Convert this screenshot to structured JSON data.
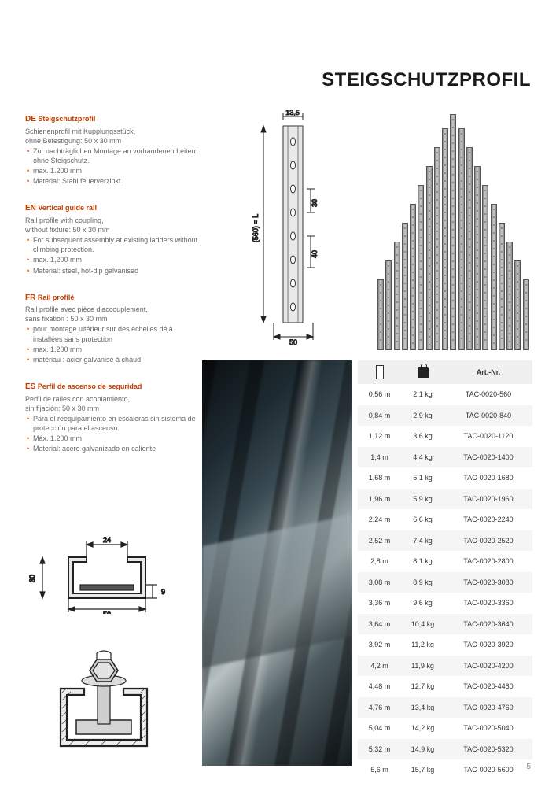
{
  "page": {
    "title": "STEIGSCHUTZPROFIL",
    "number": "5"
  },
  "languages": [
    {
      "code": "DE",
      "title": "Steigschutzprofil",
      "lines": [
        "Schienenprofil mit Kupplungsstück,",
        "ohne Befestigung: 50 x 30 mm"
      ],
      "bullets": [
        "Zur nachträglichen Montage an vorhandenen Leitern ohne Steigschutz.",
        "max. 1.200 mm",
        "Material: Stahl feuerverzinkt"
      ]
    },
    {
      "code": "EN",
      "title": "Vertical guide rail",
      "lines": [
        "Rail profile with coupling,",
        "without fixture: 50 x 30 mm"
      ],
      "bullets": [
        "For subsequent assembly at existing ladders without climbing protection.",
        "max. 1,200 mm",
        "Material: steel, hot-dip galvanised"
      ]
    },
    {
      "code": "FR",
      "title": "Rail profilé",
      "lines": [
        "Rail profilé avec pièce d'accouplement,",
        "sans fixation : 50 x 30 mm"
      ],
      "bullets": [
        "pour montage ultérieur sur des échelles déjà installées sans protection",
        "max. 1.200 mm",
        "matériau : acier galvanisé à chaud"
      ]
    },
    {
      "code": "ES",
      "title": "Perfil de ascenso de seguridad",
      "lines": [
        "Perfil de raíles con acoplamiento,",
        "sin fijación: 50 x 30 mm"
      ],
      "bullets": [
        "Para el reequipamiento en escaleras sin sistema de protección para el ascenso.",
        "Máx. 1.200 mm",
        "Material: acero galvanizado en caliente"
      ]
    }
  ],
  "tech_drawing": {
    "top_dim": "13,5",
    "side_label": "(560) = L",
    "dim_30": "30",
    "dim_40": "40",
    "dim_50": "50",
    "cross_24": "24",
    "cross_30": "30",
    "cross_50": "50",
    "cross_9": "9"
  },
  "rails": {
    "heights_pct": [
      30,
      38,
      46,
      54,
      62,
      70,
      78,
      86,
      94,
      100,
      94,
      86,
      78,
      70,
      62,
      54,
      46,
      38,
      30
    ],
    "color_light": "#b8bcbf",
    "color_dark": "#6b7074"
  },
  "table": {
    "header_artnr": "Art.-Nr.",
    "rows": [
      {
        "len": "0,56 m",
        "wt": "2,1 kg",
        "art": "TAC-0020-560"
      },
      {
        "len": "0,84 m",
        "wt": "2,9 kg",
        "art": "TAC-0020-840"
      },
      {
        "len": "1,12 m",
        "wt": "3,6 kg",
        "art": "TAC-0020-1120"
      },
      {
        "len": "1,4 m",
        "wt": "4,4 kg",
        "art": "TAC-0020-1400"
      },
      {
        "len": "1,68 m",
        "wt": "5,1 kg",
        "art": "TAC-0020-1680"
      },
      {
        "len": "1,96 m",
        "wt": "5,9 kg",
        "art": "TAC-0020-1960"
      },
      {
        "len": "2,24 m",
        "wt": "6,6 kg",
        "art": "TAC-0020-2240"
      },
      {
        "len": "2,52 m",
        "wt": "7,4 kg",
        "art": "TAC-0020-2520"
      },
      {
        "len": "2,8 m",
        "wt": "8,1 kg",
        "art": "TAC-0020-2800"
      },
      {
        "len": "3,08 m",
        "wt": "8,9 kg",
        "art": "TAC-0020-3080"
      },
      {
        "len": "3,36 m",
        "wt": "9,6 kg",
        "art": "TAC-0020-3360"
      },
      {
        "len": "3,64 m",
        "wt": "10,4 kg",
        "art": "TAC-0020-3640"
      },
      {
        "len": "3,92 m",
        "wt": "11,2 kg",
        "art": "TAC-0020-3920"
      },
      {
        "len": "4,2 m",
        "wt": "11,9 kg",
        "art": "TAC-0020-4200"
      },
      {
        "len": "4,48 m",
        "wt": "12,7 kg",
        "art": "TAC-0020-4480"
      },
      {
        "len": "4,76 m",
        "wt": "13,4 kg",
        "art": "TAC-0020-4760"
      },
      {
        "len": "5,04 m",
        "wt": "14,2 kg",
        "art": "TAC-0020-5040"
      },
      {
        "len": "5,32 m",
        "wt": "14,9 kg",
        "art": "TAC-0020-5320"
      },
      {
        "len": "5,6 m",
        "wt": "15,7 kg",
        "art": "TAC-0020-5600"
      }
    ],
    "row_bg_even": "#f5f5f5",
    "row_bg_odd": "#ffffff",
    "header_bg": "#f0f0f0"
  },
  "colors": {
    "accent": "#c43c00",
    "text": "#333333",
    "muted": "#777777",
    "line": "#222222"
  }
}
